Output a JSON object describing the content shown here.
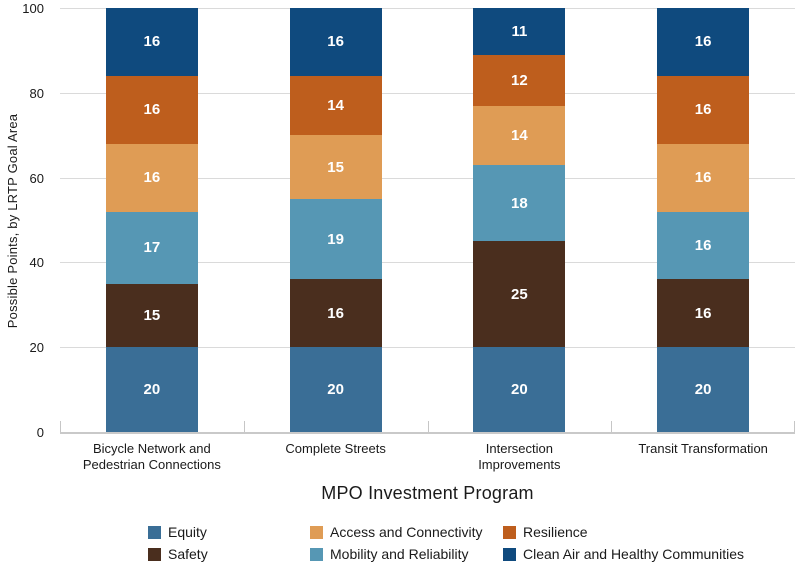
{
  "chart_data": {
    "type": "bar",
    "stacked": true,
    "title": "",
    "xlabel": "MPO Investment Program",
    "ylabel": "Possible Points, by LRTP Goal Area",
    "ylim": [
      0,
      100
    ],
    "yticks": [
      0,
      20,
      40,
      60,
      80,
      100
    ],
    "grid": "horizontal",
    "legend_position": "bottom",
    "value_label_color": "#ffffff",
    "categories": [
      {
        "label": "Bicycle Network and Pedestrian Connections",
        "lines": [
          "Bicycle Network and",
          "Pedestrian Connections"
        ]
      },
      {
        "label": "Complete Streets",
        "lines": [
          "Complete Streets"
        ]
      },
      {
        "label": "Intersection Improvements",
        "lines": [
          "Intersection",
          "Improvements"
        ]
      },
      {
        "label": "Transit Transformation",
        "lines": [
          "Transit Transformation"
        ]
      }
    ],
    "series": [
      {
        "name": "Equity",
        "color": "#3A6E96",
        "values": [
          20,
          20,
          20,
          20
        ]
      },
      {
        "name": "Safety",
        "color": "#4A2E1E",
        "values": [
          15,
          16,
          25,
          16
        ]
      },
      {
        "name": "Mobility and Reliability",
        "color": "#5697B4",
        "values": [
          17,
          19,
          18,
          16
        ]
      },
      {
        "name": "Access and Connectivity",
        "color": "#DF9C55",
        "values": [
          16,
          15,
          14,
          16
        ]
      },
      {
        "name": "Resilience",
        "color": "#BE5E1D",
        "values": [
          16,
          14,
          12,
          16
        ]
      },
      {
        "name": "Clean Air and Healthy Communities",
        "color": "#0F4A7E",
        "values": [
          16,
          16,
          11,
          16
        ]
      }
    ],
    "legend_rows": [
      [
        "Equity",
        "Access and Connectivity",
        "Resilience"
      ],
      [
        "Safety",
        "Mobility and Reliability",
        "Clean Air and Healthy Communities"
      ]
    ]
  }
}
